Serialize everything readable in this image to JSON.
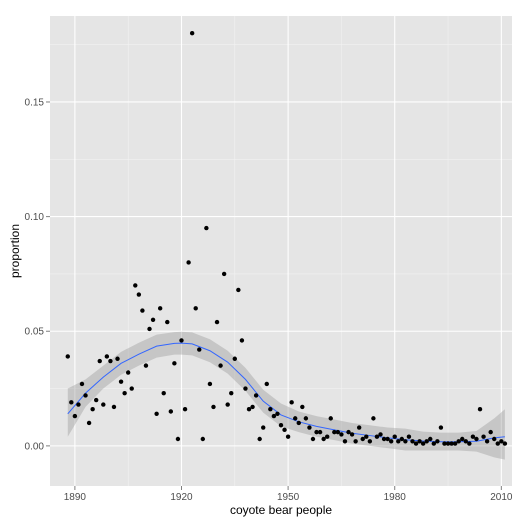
{
  "chart_data": {
    "type": "scatter",
    "xlabel": "coyote bear people",
    "ylabel": "proportion",
    "xlim": [
      1883,
      2013
    ],
    "ylim": [
      -0.0175,
      0.1875
    ],
    "x_ticks": [
      1890,
      1920,
      1950,
      1980,
      2010
    ],
    "y_ticks": [
      0.0,
      0.05,
      0.1,
      0.15
    ],
    "x_tick_labels": [
      "1890",
      "1920",
      "1950",
      "1980",
      "2010"
    ],
    "y_tick_labels": [
      "0.00",
      "0.05",
      "0.10",
      "0.15"
    ],
    "grid": true,
    "legend": "none",
    "colors": {
      "panel": "#e5e5e5",
      "grid_major": "#ffffff",
      "grid_minor": "#f2f2f2",
      "points": "#000000",
      "smooth_line": "#3366ff",
      "ribbon": "#999999"
    },
    "points": {
      "x": [
        1888,
        1889,
        1890,
        1891,
        1892,
        1893,
        1894,
        1895,
        1896,
        1897,
        1898,
        1899,
        1900,
        1901,
        1902,
        1903,
        1904,
        1905,
        1906,
        1907,
        1908,
        1909,
        1910,
        1911,
        1912,
        1913,
        1914,
        1915,
        1916,
        1917,
        1918,
        1919,
        1920,
        1921,
        1922,
        1923,
        1924,
        1925,
        1926,
        1927,
        1928,
        1929,
        1930,
        1931,
        1932,
        1933,
        1934,
        1935,
        1936,
        1937,
        1938,
        1939,
        1940,
        1941,
        1942,
        1943,
        1944,
        1945,
        1946,
        1947,
        1948,
        1949,
        1950,
        1951,
        1952,
        1953,
        1954,
        1955,
        1956,
        1957,
        1958,
        1959,
        1960,
        1961,
        1962,
        1963,
        1964,
        1965,
        1966,
        1967,
        1968,
        1969,
        1970,
        1971,
        1972,
        1973,
        1974,
        1975,
        1976,
        1977,
        1978,
        1979,
        1980,
        1981,
        1982,
        1983,
        1984,
        1985,
        1986,
        1987,
        1988,
        1989,
        1990,
        1991,
        1992,
        1993,
        1994,
        1995,
        1996,
        1997,
        1998,
        1999,
        2000,
        2001,
        2002,
        2003,
        2004,
        2005,
        2006,
        2007,
        2008,
        2009,
        2010,
        2011
      ],
      "y": [
        0.039,
        0.019,
        0.013,
        0.018,
        0.027,
        0.022,
        0.01,
        0.016,
        0.02,
        0.037,
        0.018,
        0.039,
        0.037,
        0.017,
        0.038,
        0.028,
        0.023,
        0.032,
        0.025,
        0.07,
        0.066,
        0.059,
        0.035,
        0.051,
        0.055,
        0.014,
        0.06,
        0.023,
        0.054,
        0.015,
        0.036,
        0.003,
        0.046,
        0.016,
        0.08,
        0.18,
        0.06,
        0.042,
        0.003,
        0.095,
        0.027,
        0.017,
        0.054,
        0.035,
        0.075,
        0.018,
        0.023,
        0.038,
        0.068,
        0.046,
        0.025,
        0.016,
        0.017,
        0.022,
        0.003,
        0.008,
        0.027,
        0.016,
        0.013,
        0.014,
        0.009,
        0.007,
        0.004,
        0.019,
        0.012,
        0.01,
        0.017,
        0.012,
        0.008,
        0.003,
        0.006,
        0.006,
        0.003,
        0.004,
        0.012,
        0.006,
        0.006,
        0.005,
        0.002,
        0.006,
        0.005,
        0.002,
        0.008,
        0.003,
        0.004,
        0.002,
        0.012,
        0.004,
        0.005,
        0.003,
        0.003,
        0.002,
        0.004,
        0.002,
        0.003,
        0.002,
        0.004,
        0.002,
        0.001,
        0.002,
        0.001,
        0.002,
        0.003,
        0.001,
        0.002,
        0.008,
        0.001,
        0.001,
        0.001,
        0.001,
        0.002,
        0.003,
        0.002,
        0.001,
        0.004,
        0.003,
        0.016,
        0.004,
        0.002,
        0.006,
        0.003,
        0.001,
        0.002,
        0.001
      ]
    },
    "smooth": {
      "x": [
        1888,
        1893,
        1898,
        1903,
        1908,
        1913,
        1918,
        1920,
        1923,
        1928,
        1933,
        1938,
        1943,
        1948,
        1953,
        1958,
        1963,
        1968,
        1973,
        1978,
        1983,
        1988,
        1993,
        1998,
        2003,
        2008,
        2011
      ],
      "y": [
        0.014,
        0.023,
        0.03,
        0.036,
        0.04,
        0.0435,
        0.0447,
        0.0448,
        0.0445,
        0.0415,
        0.0365,
        0.029,
        0.0195,
        0.0135,
        0.0105,
        0.0085,
        0.007,
        0.0055,
        0.0045,
        0.0035,
        0.0027,
        0.0021,
        0.0018,
        0.0018,
        0.002,
        0.0035,
        0.004
      ],
      "ymin": [
        0.004,
        0.017,
        0.025,
        0.031,
        0.035,
        0.0385,
        0.0398,
        0.0398,
        0.0395,
        0.0365,
        0.0315,
        0.024,
        0.0145,
        0.0085,
        0.006,
        0.004,
        0.0025,
        0.001,
        0.0,
        -0.001,
        -0.002,
        -0.002,
        -0.002,
        -0.002,
        -0.0025,
        -0.005,
        -0.006
      ],
      "ymax": [
        0.025,
        0.029,
        0.035,
        0.041,
        0.045,
        0.0485,
        0.0496,
        0.0498,
        0.0495,
        0.0465,
        0.0415,
        0.034,
        0.0245,
        0.0185,
        0.015,
        0.013,
        0.0115,
        0.01,
        0.009,
        0.008,
        0.0075,
        0.0062,
        0.0058,
        0.0058,
        0.0065,
        0.012,
        0.016
      ]
    }
  }
}
